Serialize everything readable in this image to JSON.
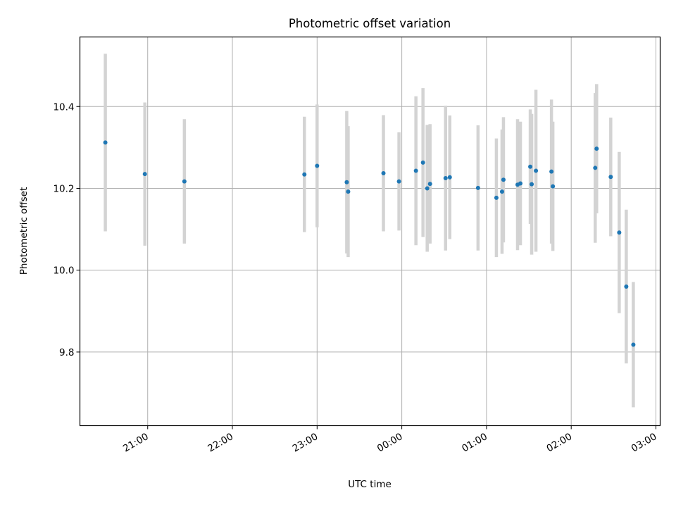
{
  "chart_data": {
    "type": "scatter",
    "title": "Photometric offset variation",
    "xlabel": "UTC time",
    "ylabel": "Photometric offset",
    "grid": true,
    "x_ticks": [
      "21:00",
      "22:00",
      "23:00",
      "00:00",
      "01:00",
      "02:00",
      "03:00"
    ],
    "y_ticks": [
      "9.8",
      "10.0",
      "10.2",
      "10.4"
    ],
    "xlim": [
      "20:12",
      "03:03"
    ],
    "ylim": [
      9.62,
      10.57
    ],
    "series": [
      {
        "points": [
          {
            "x": "20:30",
            "y": 10.312,
            "err": 0.217
          },
          {
            "x": "20:58",
            "y": 10.235,
            "err": 0.175
          },
          {
            "x": "21:26",
            "y": 10.217,
            "err": 0.152
          },
          {
            "x": "22:51",
            "y": 10.234,
            "err": 0.141
          },
          {
            "x": "23:00",
            "y": 10.255,
            "err": 0.15
          },
          {
            "x": "23:21",
            "y": 10.215,
            "err": 0.174
          },
          {
            "x": "23:22",
            "y": 10.192,
            "err": 0.16
          },
          {
            "x": "23:47",
            "y": 10.237,
            "err": 0.142
          },
          {
            "x": "23:58",
            "y": 10.217,
            "err": 0.12
          },
          {
            "x": "00:10",
            "y": 10.243,
            "err": 0.182
          },
          {
            "x": "00:15",
            "y": 10.263,
            "err": 0.182
          },
          {
            "x": "00:18",
            "y": 10.2,
            "err": 0.155
          },
          {
            "x": "00:20",
            "y": 10.211,
            "err": 0.146
          },
          {
            "x": "00:31",
            "y": 10.225,
            "err": 0.177
          },
          {
            "x": "00:34",
            "y": 10.227,
            "err": 0.151
          },
          {
            "x": "00:54",
            "y": 10.201,
            "err": 0.153
          },
          {
            "x": "01:07",
            "y": 10.177,
            "err": 0.145
          },
          {
            "x": "01:11",
            "y": 10.192,
            "err": 0.152
          },
          {
            "x": "01:12",
            "y": 10.221,
            "err": 0.153
          },
          {
            "x": "01:22",
            "y": 10.209,
            "err": 0.16
          },
          {
            "x": "01:24",
            "y": 10.212,
            "err": 0.151
          },
          {
            "x": "01:31",
            "y": 10.253,
            "err": 0.14
          },
          {
            "x": "01:32",
            "y": 10.21,
            "err": 0.172
          },
          {
            "x": "01:35",
            "y": 10.243,
            "err": 0.198
          },
          {
            "x": "01:46",
            "y": 10.241,
            "err": 0.176
          },
          {
            "x": "01:47",
            "y": 10.205,
            "err": 0.158
          },
          {
            "x": "02:17",
            "y": 10.25,
            "err": 0.183
          },
          {
            "x": "02:18",
            "y": 10.297,
            "err": 0.158
          },
          {
            "x": "02:28",
            "y": 10.228,
            "err": 0.145
          },
          {
            "x": "02:34",
            "y": 10.092,
            "err": 0.197
          },
          {
            "x": "02:39",
            "y": 9.96,
            "err": 0.188
          },
          {
            "x": "02:44",
            "y": 9.818,
            "err": 0.153
          }
        ]
      }
    ]
  },
  "colors": {
    "marker": "#1f77b4",
    "errorbar": "#d3d3d3",
    "grid": "#b0b0b0",
    "axes": "#000000"
  }
}
